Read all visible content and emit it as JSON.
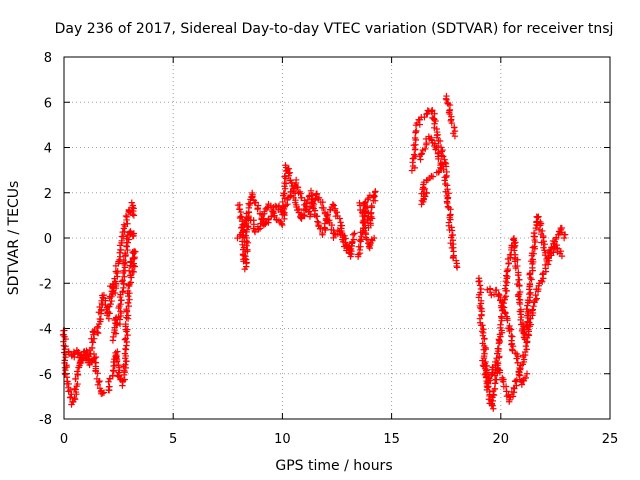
{
  "chart_data": {
    "type": "scatter",
    "title": "Day 236 of 2017, Sidereal Day-to-day VTEC variation (SDTVAR) for receiver tnsj",
    "xlabel": "GPS time / hours",
    "ylabel": "SDTVAR / TECUs",
    "xlim": [
      0,
      25
    ],
    "ylim": [
      -8,
      8
    ],
    "xticks": [
      "0",
      "5",
      "10",
      "15",
      "20",
      "25"
    ],
    "yticks": [
      "-8",
      "-6",
      "-4",
      "-2",
      "0",
      "2",
      "4",
      "6",
      "8"
    ],
    "grid": true,
    "marker": "plus",
    "color": "#ff0000",
    "series": [
      {
        "name": "tnsj",
        "segments": [
          [
            [
              0.0,
              -4.0
            ],
            [
              0.05,
              -5.0
            ],
            [
              0.1,
              -6.0
            ],
            [
              0.2,
              -6.5
            ],
            [
              0.3,
              -7.0
            ],
            [
              0.4,
              -7.3
            ],
            [
              0.5,
              -7.0
            ],
            [
              0.6,
              -6.0
            ],
            [
              0.7,
              -5.5
            ],
            [
              0.8,
              -5.2
            ],
            [
              0.9,
              -5.0
            ],
            [
              1.0,
              -5.3
            ],
            [
              1.1,
              -5.5
            ],
            [
              1.2,
              -5.0
            ],
            [
              1.3,
              -4.5
            ],
            [
              1.4,
              -4.0
            ],
            [
              1.5,
              -4.2
            ],
            [
              1.6,
              -3.8
            ],
            [
              1.7,
              -3.0
            ],
            [
              1.8,
              -2.5
            ],
            [
              1.9,
              -3.0
            ],
            [
              2.0,
              -3.5
            ],
            [
              2.1,
              -3.0
            ],
            [
              2.2,
              -2.0
            ],
            [
              2.3,
              -2.5
            ],
            [
              2.4,
              -1.5
            ],
            [
              2.5,
              -1.0
            ],
            [
              2.6,
              -0.5
            ],
            [
              2.7,
              0.0
            ],
            [
              2.8,
              0.5
            ],
            [
              2.9,
              1.0
            ],
            [
              3.0,
              1.2
            ],
            [
              3.1,
              1.5
            ],
            [
              3.2,
              1.0
            ]
          ],
          [
            [
              0.2,
              -5.0
            ],
            [
              0.4,
              -5.3
            ],
            [
              0.6,
              -4.9
            ],
            [
              0.8,
              -5.6
            ],
            [
              1.0,
              -5.0
            ],
            [
              1.2,
              -5.6
            ],
            [
              1.4,
              -5.2
            ],
            [
              1.6,
              -6.5
            ],
            [
              1.8,
              -6.9
            ],
            [
              2.0,
              -6.8
            ],
            [
              2.2,
              -6.0
            ],
            [
              2.4,
              -5.0
            ],
            [
              2.5,
              -6.0
            ],
            [
              2.6,
              -6.2
            ],
            [
              2.7,
              -6.5
            ],
            [
              2.8,
              -5.5
            ],
            [
              2.9,
              -3.0
            ],
            [
              3.0,
              -2.0
            ],
            [
              3.1,
              -1.0
            ],
            [
              3.2,
              -0.5
            ],
            [
              3.2,
              -1.5
            ]
          ],
          [
            [
              2.3,
              -4.5
            ],
            [
              2.4,
              -3.5
            ],
            [
              2.5,
              -3.8
            ],
            [
              2.6,
              -2.8
            ],
            [
              2.7,
              -1.8
            ],
            [
              2.8,
              -0.8
            ],
            [
              2.9,
              -0.2
            ],
            [
              3.0,
              0.3
            ],
            [
              3.1,
              0.0
            ],
            [
              3.2,
              0.2
            ]
          ],
          [
            [
              8.0,
              1.5
            ],
            [
              8.1,
              1.0
            ],
            [
              8.2,
              0.2
            ],
            [
              8.3,
              -1.3
            ],
            [
              8.4,
              0.5
            ],
            [
              8.5,
              1.5
            ],
            [
              8.6,
              2.0
            ],
            [
              8.8,
              1.5
            ],
            [
              9.0,
              1.0
            ],
            [
              9.2,
              0.5
            ],
            [
              9.4,
              0.8
            ],
            [
              9.6,
              1.2
            ],
            [
              9.8,
              1.5
            ],
            [
              10.0,
              1.0
            ],
            [
              10.2,
              1.5
            ],
            [
              10.4,
              2.0
            ],
            [
              10.6,
              2.5
            ],
            [
              10.8,
              2.0
            ],
            [
              11.0,
              1.5
            ],
            [
              11.2,
              1.0
            ],
            [
              11.4,
              1.5
            ],
            [
              11.6,
              2.0
            ],
            [
              11.8,
              1.5
            ],
            [
              12.0,
              1.0
            ],
            [
              12.2,
              0.5
            ],
            [
              12.4,
              0.0
            ],
            [
              12.6,
              0.3
            ],
            [
              12.8,
              0.0
            ],
            [
              13.0,
              -0.5
            ],
            [
              13.2,
              -0.2
            ]
          ],
          [
            [
              8.0,
              0.0
            ],
            [
              8.2,
              0.5
            ],
            [
              8.4,
              1.0
            ],
            [
              8.6,
              0.8
            ],
            [
              8.8,
              0.3
            ],
            [
              9.0,
              0.5
            ],
            [
              9.2,
              1.2
            ],
            [
              9.4,
              1.5
            ],
            [
              9.6,
              1.0
            ],
            [
              9.8,
              0.7
            ],
            [
              10.0,
              0.6
            ],
            [
              10.2,
              3.2
            ],
            [
              10.3,
              2.8
            ],
            [
              10.5,
              2.3
            ],
            [
              10.7,
              1.2
            ],
            [
              10.9,
              0.8
            ],
            [
              11.1,
              1.5
            ],
            [
              11.3,
              2.0
            ],
            [
              11.5,
              1.0
            ],
            [
              11.7,
              0.5
            ],
            [
              11.9,
              0.2
            ],
            [
              12.1,
              1.0
            ],
            [
              12.3,
              1.5
            ],
            [
              12.5,
              1.0
            ],
            [
              12.7,
              0.5
            ],
            [
              12.9,
              -0.5
            ],
            [
              13.1,
              -0.8
            ],
            [
              13.3,
              0.2
            ]
          ],
          [
            [
              13.5,
              -0.8
            ],
            [
              13.6,
              0.0
            ],
            [
              13.7,
              0.8
            ],
            [
              13.8,
              1.5
            ],
            [
              13.9,
              1.0
            ],
            [
              14.0,
              0.5
            ],
            [
              14.1,
              1.2
            ],
            [
              14.2,
              1.8
            ],
            [
              14.3,
              2.0
            ],
            [
              13.6,
              1.5
            ],
            [
              13.8,
              0.2
            ],
            [
              14.0,
              -0.5
            ],
            [
              14.2,
              0.0
            ]
          ],
          [
            [
              16.0,
              3.0
            ],
            [
              16.1,
              4.5
            ],
            [
              16.2,
              5.0
            ],
            [
              16.4,
              5.3
            ],
            [
              16.6,
              5.5
            ],
            [
              16.8,
              5.7
            ],
            [
              16.9,
              5.5
            ],
            [
              17.0,
              5.0
            ],
            [
              17.2,
              4.0
            ],
            [
              17.4,
              3.5
            ],
            [
              17.5,
              2.5
            ],
            [
              17.6,
              1.5
            ],
            [
              17.7,
              0.5
            ],
            [
              17.8,
              -0.5
            ],
            [
              17.9,
              -1.0
            ],
            [
              18.0,
              -1.3
            ]
          ],
          [
            [
              16.3,
              3.5
            ],
            [
              16.5,
              4.0
            ],
            [
              16.7,
              4.5
            ],
            [
              16.9,
              4.2
            ],
            [
              17.1,
              3.8
            ],
            [
              17.3,
              3.0
            ],
            [
              16.5,
              2.5
            ],
            [
              16.4,
              1.5
            ],
            [
              16.6,
              2.0
            ]
          ],
          [
            [
              17.5,
              6.3
            ],
            [
              17.6,
              6.0
            ],
            [
              17.7,
              5.5
            ],
            [
              17.8,
              5.0
            ],
            [
              17.9,
              4.5
            ]
          ],
          [
            [
              19.0,
              -1.8
            ],
            [
              19.1,
              -3.5
            ],
            [
              19.2,
              -4.5
            ],
            [
              19.3,
              -5.5
            ],
            [
              19.4,
              -6.5
            ],
            [
              19.5,
              -7.2
            ],
            [
              19.6,
              -7.5
            ],
            [
              19.7,
              -7.0
            ],
            [
              19.8,
              -6.0
            ],
            [
              19.9,
              -5.0
            ],
            [
              20.0,
              -4.0
            ],
            [
              20.1,
              -3.0
            ],
            [
              20.2,
              -2.5
            ],
            [
              20.3,
              -1.5
            ],
            [
              20.4,
              -1.0
            ],
            [
              20.5,
              -0.5
            ],
            [
              20.6,
              0.0
            ],
            [
              20.7,
              -1.0
            ],
            [
              20.8,
              -2.0
            ],
            [
              20.9,
              -3.0
            ],
            [
              21.0,
              -4.0
            ],
            [
              21.1,
              -4.5
            ],
            [
              21.2,
              -3.5
            ],
            [
              21.3,
              -2.5
            ],
            [
              21.4,
              -1.5
            ],
            [
              21.5,
              -0.5
            ],
            [
              21.6,
              0.5
            ],
            [
              21.7,
              1.0
            ],
            [
              21.8,
              0.5
            ],
            [
              21.9,
              0.0
            ],
            [
              22.0,
              -0.5
            ],
            [
              22.2,
              -1.0
            ],
            [
              22.4,
              -0.5
            ],
            [
              22.6,
              0.0
            ],
            [
              22.8,
              0.5
            ],
            [
              22.9,
              0.0
            ]
          ],
          [
            [
              19.2,
              -5.5
            ],
            [
              19.4,
              -6.5
            ],
            [
              19.6,
              -5.8
            ],
            [
              19.8,
              -5.5
            ],
            [
              20.0,
              -6.0
            ],
            [
              20.2,
              -6.5
            ],
            [
              20.4,
              -7.2
            ],
            [
              20.6,
              -6.8
            ],
            [
              20.8,
              -6.0
            ],
            [
              21.0,
              -5.5
            ],
            [
              21.2,
              -4.5
            ],
            [
              21.4,
              -3.5
            ],
            [
              21.6,
              -2.5
            ],
            [
              21.8,
              -2.0
            ],
            [
              22.0,
              -1.5
            ],
            [
              22.2,
              -0.8
            ],
            [
              22.4,
              -0.2
            ],
            [
              22.6,
              -0.5
            ],
            [
              22.8,
              -0.8
            ]
          ],
          [
            [
              19.4,
              -2.2
            ],
            [
              19.6,
              -2.5
            ],
            [
              19.8,
              -2.3
            ],
            [
              20.0,
              -2.8
            ],
            [
              20.2,
              -3.3
            ],
            [
              20.4,
              -4.0
            ],
            [
              20.6,
              -5.0
            ],
            [
              20.8,
              -5.5
            ],
            [
              21.0,
              -6.5
            ],
            [
              21.2,
              -6.0
            ]
          ]
        ]
      }
    ]
  }
}
